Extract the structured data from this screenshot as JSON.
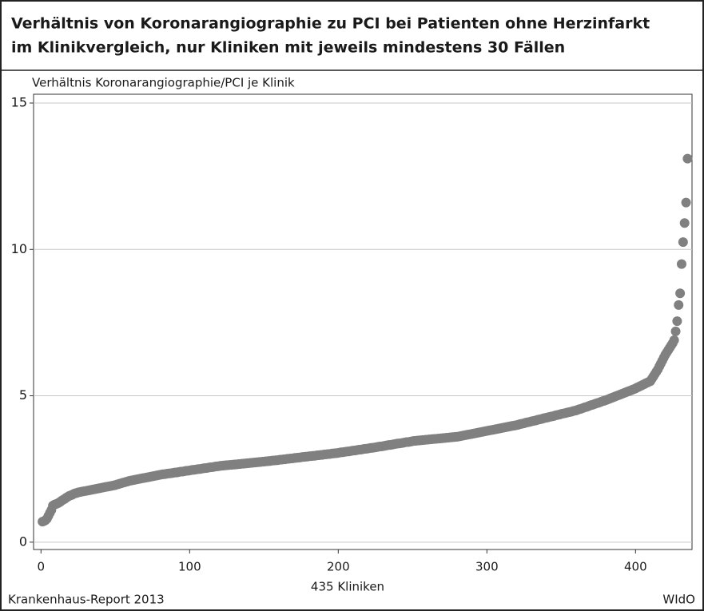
{
  "chart_data": {
    "type": "scatter",
    "title": "Verhältnis von Koronarangiographie zu PCI bei Patienten ohne Herzinfarkt",
    "subtitle": "im Klinikvergleich, nur Kliniken mit jeweils mindestens 30 Fällen",
    "y_label": "Verhältnis Koronarangiographie/PCI je Klinik",
    "x_label": "435 Kliniken",
    "source": "Krankenhaus-Report 2013",
    "brand": "WIdO",
    "color": "#808080",
    "grid": true,
    "xlim": [
      -5,
      438
    ],
    "ylim": [
      -0.25,
      15.3
    ],
    "xticks": [
      0,
      100,
      200,
      300,
      400
    ],
    "yticks": [
      0,
      5,
      10,
      15
    ],
    "x": [
      1,
      2,
      3,
      4,
      5,
      6,
      7,
      8,
      9,
      10,
      11,
      12,
      13,
      14,
      15,
      16,
      17,
      18,
      19,
      20,
      21,
      22,
      23,
      24,
      25,
      26,
      27,
      28,
      29,
      30,
      31,
      32,
      33,
      34,
      35,
      36,
      37,
      38,
      39,
      40,
      41,
      42,
      43,
      44,
      45,
      46,
      47,
      48,
      49,
      50,
      51,
      52,
      53,
      54,
      55,
      56,
      57,
      58,
      59,
      60,
      61,
      62,
      63,
      64,
      65,
      66,
      67,
      68,
      69,
      70,
      71,
      72,
      73,
      74,
      75,
      76,
      77,
      78,
      79,
      80,
      81,
      82,
      83,
      84,
      85,
      86,
      87,
      88,
      89,
      90,
      91,
      92,
      93,
      94,
      95,
      96,
      97,
      98,
      99,
      100,
      101,
      102,
      103,
      104,
      105,
      106,
      107,
      108,
      109,
      110,
      111,
      112,
      113,
      114,
      115,
      116,
      117,
      118,
      119,
      120,
      121,
      122,
      123,
      124,
      125,
      126,
      127,
      128,
      129,
      130,
      131,
      132,
      133,
      134,
      135,
      136,
      137,
      138,
      139,
      140,
      141,
      142,
      143,
      144,
      145,
      146,
      147,
      148,
      149,
      150,
      151,
      152,
      153,
      154,
      155,
      156,
      157,
      158,
      159,
      160,
      161,
      162,
      163,
      164,
      165,
      166,
      167,
      168,
      169,
      170,
      171,
      172,
      173,
      174,
      175,
      176,
      177,
      178,
      179,
      180,
      181,
      182,
      183,
      184,
      185,
      186,
      187,
      188,
      189,
      190,
      191,
      192,
      193,
      194,
      195,
      196,
      197,
      198,
      199,
      200,
      201,
      202,
      203,
      204,
      205,
      206,
      207,
      208,
      209,
      210,
      211,
      212,
      213,
      214,
      215,
      216,
      217,
      218,
      219,
      220,
      221,
      222,
      223,
      224,
      225,
      226,
      227,
      228,
      229,
      230,
      231,
      232,
      233,
      234,
      235,
      236,
      237,
      238,
      239,
      240,
      241,
      242,
      243,
      244,
      245,
      246,
      247,
      248,
      249,
      250,
      251,
      252,
      253,
      254,
      255,
      256,
      257,
      258,
      259,
      260,
      261,
      262,
      263,
      264,
      265,
      266,
      267,
      268,
      269,
      270,
      271,
      272,
      273,
      274,
      275,
      276,
      277,
      278,
      279,
      280,
      281,
      282,
      283,
      284,
      285,
      286,
      287,
      288,
      289,
      290,
      291,
      292,
      293,
      294,
      295,
      296,
      297,
      298,
      299,
      300,
      301,
      302,
      303,
      304,
      305,
      306,
      307,
      308,
      309,
      310,
      311,
      312,
      313,
      314,
      315,
      316,
      317,
      318,
      319,
      320,
      321,
      322,
      323,
      324,
      325,
      326,
      327,
      328,
      329,
      330,
      331,
      332,
      333,
      334,
      335,
      336,
      337,
      338,
      339,
      340,
      341,
      342,
      343,
      344,
      345,
      346,
      347,
      348,
      349,
      350,
      351,
      352,
      353,
      354,
      355,
      356,
      357,
      358,
      359,
      360,
      361,
      362,
      363,
      364,
      365,
      366,
      367,
      368,
      369,
      370,
      371,
      372,
      373,
      374,
      375,
      376,
      377,
      378,
      379,
      380,
      381,
      382,
      383,
      384,
      385,
      386,
      387,
      388,
      389,
      390,
      391,
      392,
      393,
      394,
      395,
      396,
      397,
      398,
      399,
      400,
      401,
      402,
      403,
      404,
      405,
      406,
      407,
      408,
      409,
      410,
      411,
      412,
      413,
      414,
      415,
      416,
      417,
      418,
      419,
      420,
      421,
      422,
      423,
      424,
      425,
      426,
      427,
      428,
      429,
      430,
      431,
      432,
      433,
      434,
      435
    ],
    "values": [
      0.7,
      0.72,
      0.75,
      0.8,
      0.9,
      1.0,
      1.1,
      1.25,
      1.28,
      1.3,
      1.32,
      1.35,
      1.38,
      1.42,
      1.45,
      1.48,
      1.52,
      1.55,
      1.58,
      1.6,
      1.62,
      1.65,
      1.67,
      1.68,
      1.7,
      1.71,
      1.72,
      1.73,
      1.74,
      1.75,
      1.76,
      1.77,
      1.78,
      1.79,
      1.8,
      1.81,
      1.82,
      1.83,
      1.84,
      1.85,
      1.86,
      1.87,
      1.88,
      1.89,
      1.9,
      1.91,
      1.92,
      1.93,
      1.94,
      1.95,
      1.97,
      1.98,
      2.0,
      2.01,
      2.03,
      2.04,
      2.06,
      2.07,
      2.09,
      2.1,
      2.11,
      2.12,
      2.13,
      2.14,
      2.15,
      2.16,
      2.17,
      2.18,
      2.19,
      2.2,
      2.21,
      2.22,
      2.23,
      2.24,
      2.25,
      2.26,
      2.27,
      2.28,
      2.29,
      2.3,
      2.31,
      2.32,
      2.32,
      2.33,
      2.34,
      2.35,
      2.35,
      2.36,
      2.37,
      2.38,
      2.38,
      2.39,
      2.4,
      2.41,
      2.41,
      2.42,
      2.43,
      2.44,
      2.44,
      2.45,
      2.46,
      2.47,
      2.47,
      2.48,
      2.49,
      2.5,
      2.5,
      2.51,
      2.52,
      2.53,
      2.53,
      2.54,
      2.55,
      2.56,
      2.56,
      2.57,
      2.58,
      2.59,
      2.59,
      2.6,
      2.61,
      2.61,
      2.62,
      2.62,
      2.63,
      2.63,
      2.64,
      2.64,
      2.65,
      2.65,
      2.66,
      2.66,
      2.67,
      2.67,
      2.68,
      2.68,
      2.69,
      2.69,
      2.7,
      2.7,
      2.71,
      2.71,
      2.72,
      2.72,
      2.73,
      2.73,
      2.74,
      2.74,
      2.75,
      2.75,
      2.76,
      2.76,
      2.77,
      2.77,
      2.78,
      2.79,
      2.79,
      2.8,
      2.8,
      2.81,
      2.82,
      2.82,
      2.83,
      2.83,
      2.84,
      2.85,
      2.85,
      2.86,
      2.86,
      2.87,
      2.88,
      2.88,
      2.89,
      2.89,
      2.9,
      2.91,
      2.91,
      2.92,
      2.92,
      2.93,
      2.94,
      2.94,
      2.95,
      2.95,
      2.96,
      2.97,
      2.97,
      2.98,
      2.98,
      2.99,
      3.0,
      3.0,
      3.01,
      3.01,
      3.02,
      3.03,
      3.03,
      3.04,
      3.04,
      3.05,
      3.06,
      3.07,
      3.07,
      3.08,
      3.09,
      3.1,
      3.1,
      3.11,
      3.12,
      3.13,
      3.13,
      3.14,
      3.15,
      3.16,
      3.16,
      3.17,
      3.18,
      3.19,
      3.19,
      3.2,
      3.21,
      3.22,
      3.22,
      3.23,
      3.24,
      3.25,
      3.26,
      3.27,
      3.27,
      3.28,
      3.29,
      3.3,
      3.31,
      3.32,
      3.32,
      3.33,
      3.34,
      3.35,
      3.36,
      3.37,
      3.37,
      3.38,
      3.39,
      3.4,
      3.41,
      3.42,
      3.42,
      3.43,
      3.44,
      3.45,
      3.46,
      3.46,
      3.47,
      3.47,
      3.48,
      3.48,
      3.49,
      3.49,
      3.5,
      3.5,
      3.51,
      3.51,
      3.52,
      3.52,
      3.53,
      3.53,
      3.54,
      3.54,
      3.55,
      3.55,
      3.56,
      3.56,
      3.57,
      3.57,
      3.58,
      3.58,
      3.59,
      3.59,
      3.6,
      3.6,
      3.61,
      3.62,
      3.63,
      3.64,
      3.65,
      3.66,
      3.67,
      3.68,
      3.69,
      3.7,
      3.71,
      3.72,
      3.73,
      3.74,
      3.75,
      3.76,
      3.77,
      3.78,
      3.79,
      3.8,
      3.81,
      3.82,
      3.83,
      3.84,
      3.85,
      3.86,
      3.87,
      3.88,
      3.89,
      3.9,
      3.91,
      3.92,
      3.93,
      3.94,
      3.95,
      3.96,
      3.97,
      3.98,
      3.99,
      4.0,
      4.01,
      4.03,
      4.04,
      4.05,
      4.06,
      4.08,
      4.09,
      4.1,
      4.11,
      4.13,
      4.14,
      4.15,
      4.16,
      4.18,
      4.19,
      4.2,
      4.21,
      4.23,
      4.24,
      4.25,
      4.26,
      4.28,
      4.29,
      4.3,
      4.31,
      4.33,
      4.34,
      4.35,
      4.36,
      4.38,
      4.39,
      4.4,
      4.41,
      4.43,
      4.44,
      4.45,
      4.46,
      4.48,
      4.49,
      4.5,
      4.52,
      4.54,
      4.55,
      4.57,
      4.59,
      4.61,
      4.62,
      4.64,
      4.66,
      4.68,
      4.69,
      4.71,
      4.73,
      4.75,
      4.76,
      4.78,
      4.8,
      4.82,
      4.83,
      4.85,
      4.87,
      4.89,
      4.91,
      4.93,
      4.95,
      4.97,
      4.99,
      5.01,
      5.03,
      5.05,
      5.07,
      5.09,
      5.11,
      5.13,
      5.15,
      5.17,
      5.19,
      5.21,
      5.23,
      5.25,
      5.28,
      5.3,
      5.33,
      5.35,
      5.38,
      5.4,
      5.43,
      5.45,
      5.48,
      5.5,
      5.58,
      5.66,
      5.74,
      5.82,
      5.9,
      6.0,
      6.1,
      6.2,
      6.3,
      6.4,
      6.48,
      6.56,
      6.64,
      6.72,
      6.8,
      6.9,
      7.2,
      7.55,
      8.1,
      8.5,
      9.5,
      10.25,
      10.9,
      11.6,
      13.1
    ]
  }
}
